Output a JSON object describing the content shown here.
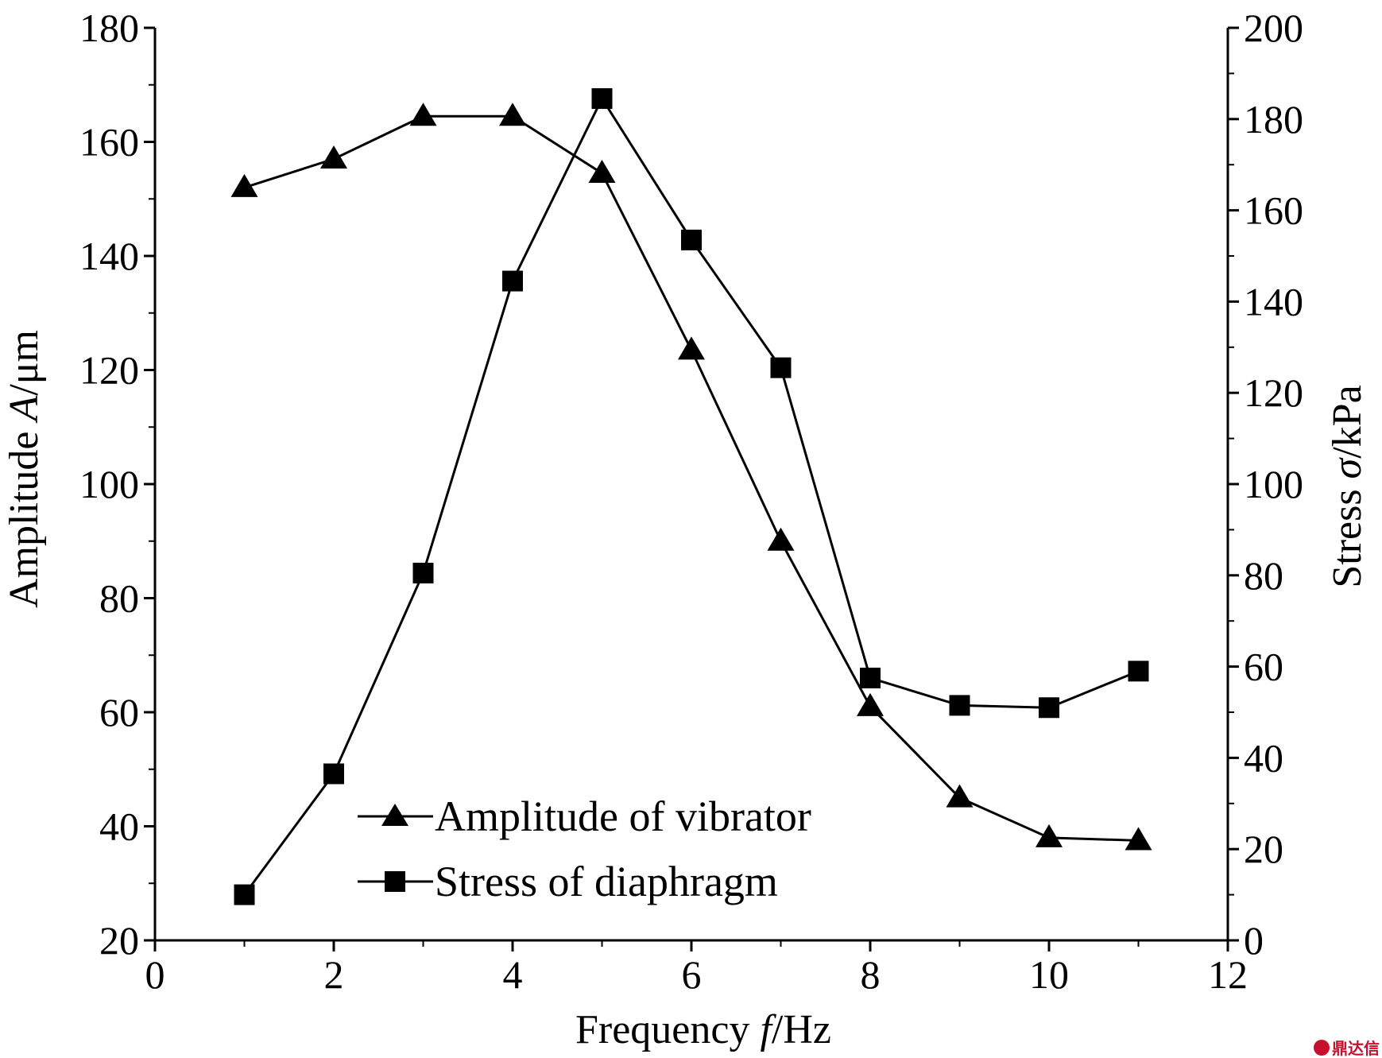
{
  "chart_data": {
    "type": "line",
    "x": [
      1,
      2,
      3,
      4,
      5,
      6,
      7,
      8,
      9,
      10,
      11
    ],
    "xlabel": {
      "pre": "Frequency ",
      "var": "f",
      "post": "/Hz"
    },
    "xlim": [
      0,
      12
    ],
    "xticks": [
      "0",
      "2",
      "4",
      "6",
      "8",
      "10",
      "12"
    ],
    "ylabel_left": {
      "pre": "Amplitude ",
      "var": "A",
      "post": "/μm"
    },
    "ylim_left": [
      20,
      180
    ],
    "yticks_left": [
      "20",
      "40",
      "60",
      "80",
      "100",
      "120",
      "140",
      "160",
      "180"
    ],
    "ylabel_right": {
      "pre": "Stress ",
      "var": "σ",
      "post": "/kPa"
    },
    "ylim_right": [
      0,
      200
    ],
    "yticks_right": [
      "0",
      "20",
      "40",
      "60",
      "80",
      "100",
      "120",
      "140",
      "160",
      "180",
      "200"
    ],
    "series": [
      {
        "name": "Amplitude of vibrator",
        "axis": "left",
        "marker": "triangle",
        "values": [
          152,
          157,
          164.5,
          164.5,
          154.5,
          123.5,
          90,
          61,
          45,
          38,
          37.5
        ]
      },
      {
        "name": "Stress of diaphragm",
        "axis": "right",
        "marker": "square",
        "values": [
          10,
          36.5,
          80.5,
          144.5,
          184.5,
          153.5,
          125.5,
          57.5,
          51.5,
          51,
          59
        ]
      }
    ],
    "legend": "bottom-center",
    "grid": false,
    "line_color": "#000000"
  },
  "watermark": {
    "text": "鼎达信",
    "color": "#c8102e"
  }
}
